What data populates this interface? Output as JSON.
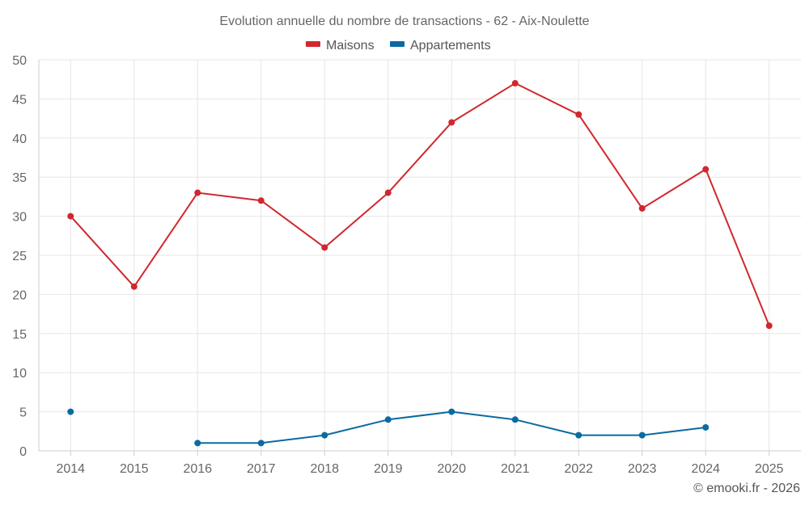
{
  "chart_data": {
    "type": "line",
    "title": "Evolution annuelle du nombre de transactions - 62 - Aix-Noulette",
    "xlabel": "",
    "ylabel": "",
    "categories": [
      "2014",
      "2015",
      "2016",
      "2017",
      "2018",
      "2019",
      "2020",
      "2021",
      "2022",
      "2023",
      "2024",
      "2025"
    ],
    "ylim": [
      0,
      50
    ],
    "yticks": [
      "0",
      "5",
      "10",
      "15",
      "20",
      "25",
      "30",
      "35",
      "40",
      "45",
      "50"
    ],
    "grid": true,
    "legend_position": "top-center",
    "series": [
      {
        "name": "Maisons",
        "color": "#d0282e",
        "values": [
          30,
          21,
          33,
          32,
          26,
          33,
          42,
          47,
          43,
          31,
          36,
          16
        ]
      },
      {
        "name": "Appartements",
        "color": "#0a6aa1",
        "values": [
          5,
          null,
          1,
          1,
          2,
          4,
          5,
          4,
          2,
          2,
          3,
          null
        ]
      }
    ],
    "credit": "© emooki.fr - 2026"
  }
}
